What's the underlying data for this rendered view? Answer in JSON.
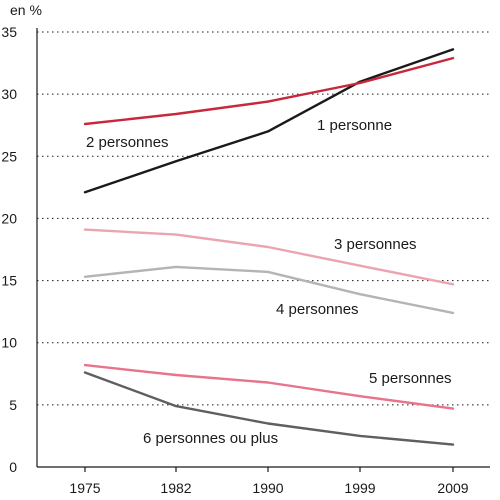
{
  "chart_data": {
    "type": "line",
    "unit_label": "en %",
    "categories": [
      "1975",
      "1982",
      "1990",
      "1999",
      "2009"
    ],
    "ylim": [
      0,
      35
    ],
    "y_ticks": [
      0,
      5,
      10,
      15,
      20,
      25,
      30,
      35
    ],
    "grid": true,
    "series": [
      {
        "name": "1 personne",
        "color": "#1a1a1a",
        "values": [
          22.1,
          24.6,
          27.0,
          31.0,
          33.6
        ]
      },
      {
        "name": "2 personnes",
        "color": "#c8283c",
        "values": [
          27.6,
          28.4,
          29.4,
          30.9,
          32.9
        ]
      },
      {
        "name": "3 personnes",
        "color": "#eba5b0",
        "values": [
          19.1,
          18.7,
          17.7,
          16.2,
          14.7
        ]
      },
      {
        "name": "4 personnes",
        "color": "#b4b4b4",
        "values": [
          15.3,
          16.1,
          15.7,
          13.9,
          12.4
        ]
      },
      {
        "name": "5 personnes",
        "color": "#e8748a",
        "values": [
          8.2,
          7.4,
          6.8,
          5.7,
          4.7
        ]
      },
      {
        "name": "6 personnes ou plus",
        "color": "#5f5f5f",
        "values": [
          7.6,
          4.9,
          3.5,
          2.5,
          1.8
        ]
      }
    ]
  }
}
